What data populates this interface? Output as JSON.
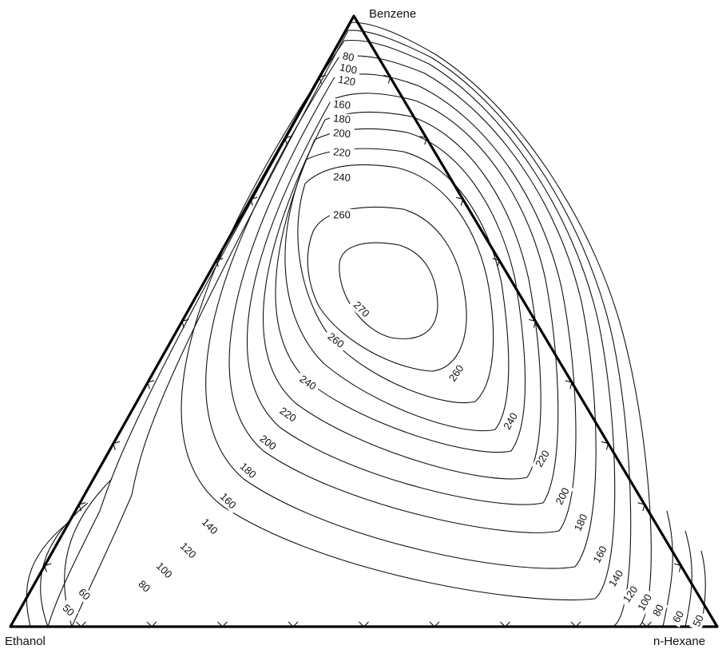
{
  "vertices": {
    "top": "Benzene",
    "left": "Ethanol",
    "right": "n-Hexane"
  },
  "contour_labels": [
    {
      "text": "80",
      "rotate": 12
    },
    {
      "text": "100",
      "rotate": 12
    },
    {
      "text": "120",
      "rotate": 10
    },
    {
      "text": "160",
      "rotate": 6
    },
    {
      "text": "180",
      "rotate": 6
    },
    {
      "text": "200",
      "rotate": 6
    },
    {
      "text": "220",
      "rotate": 6
    },
    {
      "text": "240",
      "rotate": 4
    },
    {
      "text": "260",
      "rotate": 0
    },
    {
      "text": "270",
      "rotate": 45
    },
    {
      "text": "260",
      "rotate": 38
    },
    {
      "text": "260",
      "rotate": -55
    },
    {
      "text": "240",
      "rotate": 35
    },
    {
      "text": "240",
      "rotate": -60
    },
    {
      "text": "220",
      "rotate": 35
    },
    {
      "text": "220",
      "rotate": -60
    },
    {
      "text": "200",
      "rotate": 38
    },
    {
      "text": "200",
      "rotate": -62
    },
    {
      "text": "180",
      "rotate": 42
    },
    {
      "text": "180",
      "rotate": -65
    },
    {
      "text": "160",
      "rotate": 45
    },
    {
      "text": "160",
      "rotate": -62
    },
    {
      "text": "140",
      "rotate": 45
    },
    {
      "text": "140",
      "rotate": -58
    },
    {
      "text": "120",
      "rotate": 45
    },
    {
      "text": "120",
      "rotate": -55
    },
    {
      "text": "100",
      "rotate": 45
    },
    {
      "text": "100",
      "rotate": -60
    },
    {
      "text": "80",
      "rotate": 45
    },
    {
      "text": "80",
      "rotate": -62
    },
    {
      "text": "60",
      "rotate": 45
    },
    {
      "text": "60",
      "rotate": -60
    },
    {
      "text": "50",
      "rotate": 45
    },
    {
      "text": "50",
      "rotate": -65
    }
  ]
}
